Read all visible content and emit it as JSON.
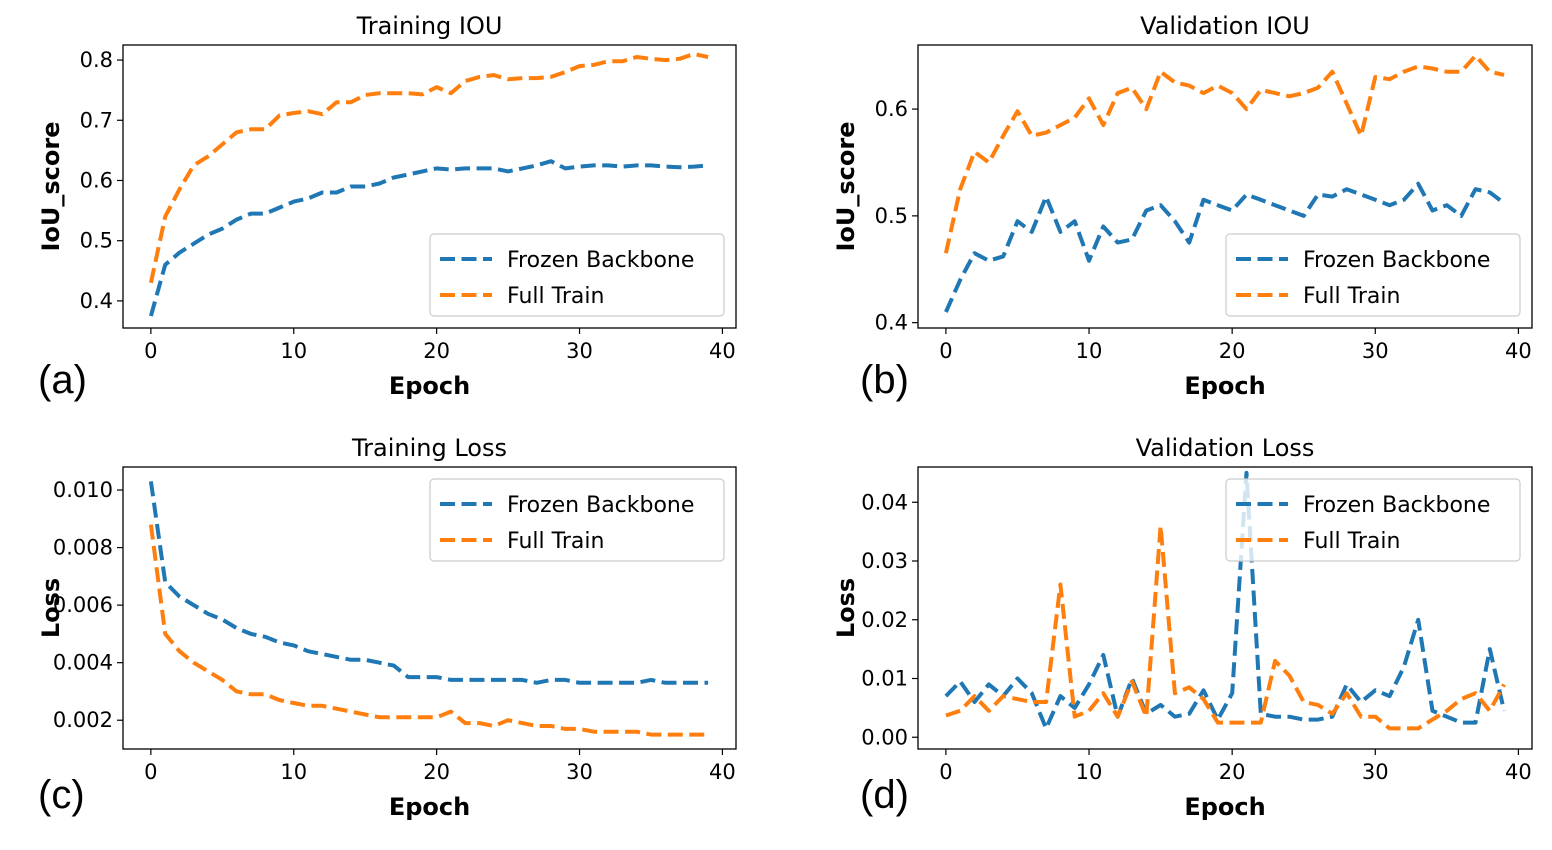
{
  "colors": {
    "frozen": "#1f77b4",
    "full": "#ff7f0e"
  },
  "chart_data": [
    {
      "type": "line",
      "panel_label": "(a)",
      "title": "Training IOU",
      "xlabel": "Epoch",
      "ylabel": "IoU_score",
      "xlim": [
        -1.95,
        40.95
      ],
      "ylim": [
        0.355,
        0.825
      ],
      "xticks": [
        0,
        10,
        20,
        30,
        40
      ],
      "yticks": [
        0.4,
        0.5,
        0.6,
        0.7,
        0.8
      ],
      "ytick_labels": [
        "0.4",
        "0.5",
        "0.6",
        "0.7",
        "0.8"
      ],
      "legend": "lower-right",
      "x": [
        0,
        1,
        2,
        3,
        4,
        5,
        6,
        7,
        8,
        9,
        10,
        11,
        12,
        13,
        14,
        15,
        16,
        17,
        18,
        19,
        20,
        21,
        22,
        23,
        24,
        25,
        26,
        27,
        28,
        29,
        30,
        31,
        32,
        33,
        34,
        35,
        36,
        37,
        38,
        39
      ],
      "series": [
        {
          "name": "Frozen Backbone",
          "values": [
            0.375,
            0.46,
            0.48,
            0.495,
            0.51,
            0.52,
            0.535,
            0.545,
            0.545,
            0.555,
            0.565,
            0.57,
            0.58,
            0.58,
            0.59,
            0.59,
            0.595,
            0.605,
            0.61,
            0.615,
            0.62,
            0.618,
            0.62,
            0.62,
            0.62,
            0.615,
            0.62,
            0.625,
            0.632,
            0.62,
            0.623,
            0.625,
            0.625,
            0.623,
            0.625,
            0.625,
            0.623,
            0.622,
            0.623,
            0.625
          ]
        },
        {
          "name": "Full Train",
          "values": [
            0.43,
            0.54,
            0.585,
            0.625,
            0.64,
            0.66,
            0.68,
            0.685,
            0.685,
            0.708,
            0.712,
            0.715,
            0.71,
            0.73,
            0.73,
            0.742,
            0.745,
            0.745,
            0.745,
            0.743,
            0.755,
            0.745,
            0.765,
            0.772,
            0.775,
            0.768,
            0.77,
            0.77,
            0.772,
            0.78,
            0.79,
            0.792,
            0.798,
            0.798,
            0.805,
            0.802,
            0.8,
            0.802,
            0.81,
            0.805
          ]
        }
      ]
    },
    {
      "type": "line",
      "panel_label": "(b)",
      "title": "Validation IOU",
      "xlabel": "Epoch",
      "ylabel": "IoU_score",
      "xlim": [
        -1.95,
        40.95
      ],
      "ylim": [
        0.395,
        0.66
      ],
      "xticks": [
        0,
        10,
        20,
        30,
        40
      ],
      "yticks": [
        0.4,
        0.5,
        0.6
      ],
      "ytick_labels": [
        "0.4",
        "0.5",
        "0.6"
      ],
      "legend": "lower-right",
      "x": [
        0,
        1,
        2,
        3,
        4,
        5,
        6,
        7,
        8,
        9,
        10,
        11,
        12,
        13,
        14,
        15,
        16,
        17,
        18,
        19,
        20,
        21,
        22,
        23,
        24,
        25,
        26,
        27,
        28,
        29,
        30,
        31,
        32,
        33,
        34,
        35,
        36,
        37,
        38,
        39
      ],
      "series": [
        {
          "name": "Frozen Backbone",
          "values": [
            0.41,
            0.44,
            0.465,
            0.458,
            0.462,
            0.495,
            0.485,
            0.518,
            0.485,
            0.495,
            0.458,
            0.49,
            0.475,
            0.478,
            0.505,
            0.51,
            0.495,
            0.475,
            0.515,
            0.51,
            0.505,
            0.52,
            0.515,
            0.51,
            0.505,
            0.5,
            0.52,
            0.518,
            0.525,
            0.52,
            0.515,
            0.51,
            0.515,
            0.53,
            0.505,
            0.51,
            0.5,
            0.525,
            0.522,
            0.512
          ]
        },
        {
          "name": "Full Train",
          "values": [
            0.465,
            0.525,
            0.56,
            0.55,
            0.575,
            0.598,
            0.575,
            0.578,
            0.585,
            0.592,
            0.61,
            0.585,
            0.615,
            0.62,
            0.6,
            0.635,
            0.625,
            0.622,
            0.615,
            0.622,
            0.615,
            0.6,
            0.618,
            0.615,
            0.612,
            0.615,
            0.62,
            0.635,
            0.605,
            0.575,
            0.63,
            0.628,
            0.635,
            0.64,
            0.638,
            0.635,
            0.635,
            0.65,
            0.635,
            0.632
          ]
        }
      ]
    },
    {
      "type": "line",
      "panel_label": "(c)",
      "title": "Training Loss",
      "xlabel": "Epoch",
      "ylabel": "Loss",
      "xlim": [
        -1.95,
        40.95
      ],
      "ylim": [
        0.001,
        0.0108
      ],
      "xticks": [
        0,
        10,
        20,
        30,
        40
      ],
      "yticks": [
        0.002,
        0.004,
        0.006,
        0.008,
        0.01
      ],
      "ytick_labels": [
        "0.002",
        "0.004",
        "0.006",
        "0.008",
        "0.010"
      ],
      "legend": "upper-right",
      "x": [
        0,
        1,
        2,
        3,
        4,
        5,
        6,
        7,
        8,
        9,
        10,
        11,
        12,
        13,
        14,
        15,
        16,
        17,
        18,
        19,
        20,
        21,
        22,
        23,
        24,
        25,
        26,
        27,
        28,
        29,
        30,
        31,
        32,
        33,
        34,
        35,
        36,
        37,
        38,
        39
      ],
      "series": [
        {
          "name": "Frozen Backbone",
          "values": [
            0.0103,
            0.0068,
            0.0063,
            0.006,
            0.0057,
            0.0055,
            0.0052,
            0.005,
            0.0049,
            0.0047,
            0.0046,
            0.0044,
            0.0043,
            0.0042,
            0.0041,
            0.0041,
            0.004,
            0.0039,
            0.0035,
            0.0035,
            0.0035,
            0.0034,
            0.0034,
            0.0034,
            0.0034,
            0.0034,
            0.0034,
            0.0033,
            0.0034,
            0.0034,
            0.0033,
            0.0033,
            0.0033,
            0.0033,
            0.0033,
            0.0034,
            0.0033,
            0.0033,
            0.0033,
            0.0033
          ]
        },
        {
          "name": "Full Train",
          "values": [
            0.0088,
            0.005,
            0.0044,
            0.004,
            0.0037,
            0.0034,
            0.003,
            0.0029,
            0.0029,
            0.0027,
            0.0026,
            0.0025,
            0.0025,
            0.0024,
            0.0023,
            0.0022,
            0.0021,
            0.0021,
            0.0021,
            0.0021,
            0.0021,
            0.0023,
            0.0019,
            0.0019,
            0.0018,
            0.002,
            0.0019,
            0.0018,
            0.0018,
            0.0017,
            0.0017,
            0.0016,
            0.0016,
            0.0016,
            0.0016,
            0.0015,
            0.0015,
            0.0015,
            0.0015,
            0.0015
          ]
        }
      ]
    },
    {
      "type": "line",
      "panel_label": "(d)",
      "title": "Validation Loss",
      "xlabel": "Epoch",
      "ylabel": "Loss",
      "xlim": [
        -1.95,
        40.95
      ],
      "ylim": [
        -0.002,
        0.046
      ],
      "xticks": [
        0,
        10,
        20,
        30,
        40
      ],
      "yticks": [
        0.0,
        0.01,
        0.02,
        0.03,
        0.04
      ],
      "ytick_labels": [
        "0.00",
        "0.01",
        "0.02",
        "0.03",
        "0.04"
      ],
      "legend": "upper-right",
      "x": [
        0,
        1,
        2,
        3,
        4,
        5,
        6,
        7,
        8,
        9,
        10,
        11,
        12,
        13,
        14,
        15,
        16,
        17,
        18,
        19,
        20,
        21,
        22,
        23,
        24,
        25,
        26,
        27,
        28,
        29,
        30,
        31,
        32,
        33,
        34,
        35,
        36,
        37,
        38,
        39
      ],
      "series": [
        {
          "name": "Frozen Backbone",
          "values": [
            0.007,
            0.0095,
            0.006,
            0.009,
            0.007,
            0.01,
            0.0075,
            0.0015,
            0.007,
            0.005,
            0.009,
            0.014,
            0.0035,
            0.01,
            0.004,
            0.0055,
            0.0035,
            0.004,
            0.008,
            0.003,
            0.0075,
            0.045,
            0.004,
            0.0035,
            0.0035,
            0.003,
            0.003,
            0.0035,
            0.009,
            0.006,
            0.008,
            0.007,
            0.012,
            0.02,
            0.0045,
            0.0035,
            0.0025,
            0.0025,
            0.015,
            0.0045
          ]
        },
        {
          "name": "Full Train",
          "values": [
            0.0037,
            0.0045,
            0.007,
            0.0045,
            0.007,
            0.0065,
            0.006,
            0.006,
            0.026,
            0.0035,
            0.0045,
            0.0075,
            0.0035,
            0.0095,
            0.0035,
            0.036,
            0.0075,
            0.0085,
            0.0065,
            0.0025,
            0.0025,
            0.0025,
            0.0025,
            0.013,
            0.0105,
            0.006,
            0.0055,
            0.004,
            0.0075,
            0.0035,
            0.0035,
            0.0015,
            0.0015,
            0.0015,
            0.003,
            0.0045,
            0.0065,
            0.0075,
            0.0045,
            0.009
          ]
        }
      ]
    }
  ]
}
